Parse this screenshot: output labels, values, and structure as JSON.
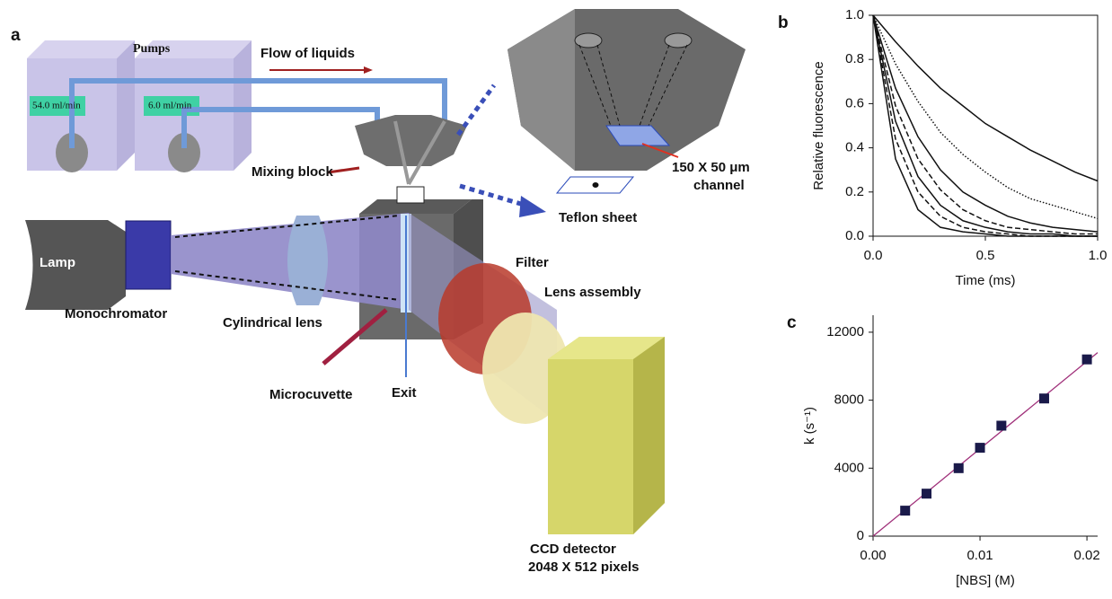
{
  "panels": [
    "a",
    "b",
    "c"
  ],
  "diagram": {
    "pumps": "Pumps",
    "flow": "Flow of liquids",
    "pump1_rate": "54.0 ml/min",
    "pump2_rate": "6.0 ml/min",
    "mixing_block": "Mixing block",
    "channel_line1": "150 X 50 μm",
    "channel_line2": "channel",
    "teflon": "Teflon sheet",
    "lamp": "Lamp",
    "monochromator": "Monochromator",
    "cylindrical_lens": "Cylindrical lens",
    "filter": "Filter",
    "lens_assembly": "Lens assembly",
    "microcuvette": "Microcuvette",
    "exit": "Exit",
    "ccd_line1": "CCD detector",
    "ccd_line2": "2048 X 512 pixels"
  },
  "chart_data": [
    {
      "type": "line",
      "x_label": "Time (ms)",
      "y_label": "Relative fluorescence",
      "x": [
        0,
        0.1,
        0.2,
        0.3,
        0.4,
        0.5,
        0.6,
        0.7,
        0.8,
        0.9,
        1.0
      ],
      "series": [
        {
          "color": "#111111",
          "style": "solid",
          "values": [
            1,
            0.88,
            0.77,
            0.67,
            0.59,
            0.51,
            0.45,
            0.39,
            0.34,
            0.29,
            0.25
          ]
        },
        {
          "color": "#111111",
          "style": "dotted",
          "values": [
            1,
            0.78,
            0.61,
            0.47,
            0.37,
            0.29,
            0.22,
            0.17,
            0.14,
            0.11,
            0.08
          ]
        },
        {
          "color": "#111111",
          "style": "solid",
          "values": [
            1,
            0.67,
            0.45,
            0.3,
            0.2,
            0.14,
            0.09,
            0.06,
            0.04,
            0.03,
            0.02
          ]
        },
        {
          "color": "#111111",
          "style": "dashed",
          "values": [
            1,
            0.59,
            0.35,
            0.21,
            0.12,
            0.07,
            0.04,
            0.03,
            0.02,
            0.01,
            0.01
          ]
        },
        {
          "color": "#111111",
          "style": "solid",
          "values": [
            1,
            0.52,
            0.27,
            0.14,
            0.07,
            0.04,
            0.02,
            0.01,
            0.01,
            0,
            0
          ]
        },
        {
          "color": "#111111",
          "style": "dashed",
          "values": [
            1,
            0.44,
            0.2,
            0.09,
            0.04,
            0.02,
            0.01,
            0,
            0,
            0,
            0
          ]
        },
        {
          "color": "#111111",
          "style": "solid",
          "values": [
            1,
            0.35,
            0.12,
            0.04,
            0.02,
            0.01,
            0,
            0,
            0,
            0,
            0
          ]
        }
      ],
      "xlim": [
        0,
        1.0
      ],
      "ylim": [
        0,
        1.0
      ],
      "xticks": [
        {
          "value": 0,
          "label": "0.0"
        },
        0.5,
        {
          "value": 1,
          "label": "1.0"
        }
      ],
      "yticks": [
        {
          "value": 0,
          "label": "0.0"
        },
        0.2,
        0.4,
        0.6,
        0.8,
        {
          "value": 1,
          "label": "1.0"
        }
      ]
    },
    {
      "type": "scatter",
      "x_label": "[NBS] (M)",
      "y_label": "k (s⁻¹)",
      "x": [
        0.003,
        0.005,
        0.008,
        0.01,
        0.012,
        0.016,
        0.02
      ],
      "values": [
        1500,
        2500,
        4000,
        5200,
        6500,
        8100,
        10400
      ],
      "color": "#1a1a4a",
      "fit_line": {
        "x": [
          0,
          0.021
        ],
        "y": [
          0,
          10800
        ],
        "color": "#a0307a"
      },
      "xlim": [
        0,
        0.021
      ],
      "ylim": [
        0,
        13000
      ],
      "xticks": [
        {
          "value": 0,
          "label": "0.00"
        },
        0.01,
        0.02
      ],
      "yticks": [
        0,
        4000,
        8000,
        12000
      ]
    }
  ]
}
